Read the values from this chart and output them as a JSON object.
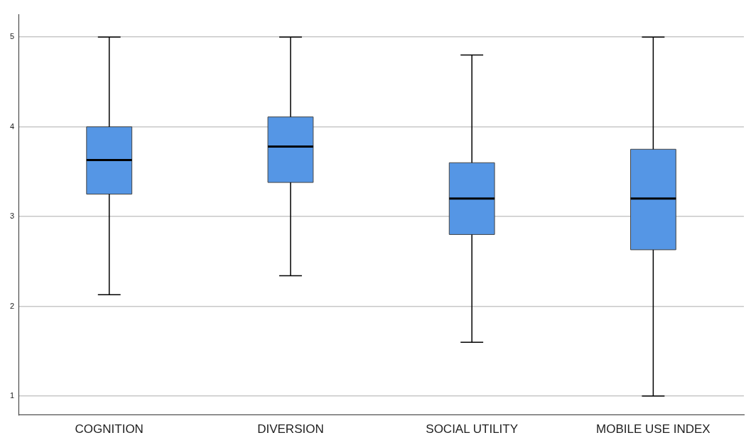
{
  "chart_data": {
    "type": "box",
    "categories": [
      "COGNITION",
      "DIVERSION",
      "SOCIAL UTILITY",
      "MOBILE USE INDEX"
    ],
    "boxes": [
      {
        "low": 2.13,
        "q1": 3.25,
        "median": 3.63,
        "q3": 4.0,
        "high": 5.0
      },
      {
        "low": 2.34,
        "q1": 3.38,
        "median": 3.78,
        "q3": 4.11,
        "high": 5.0
      },
      {
        "low": 1.6,
        "q1": 2.8,
        "median": 3.2,
        "q3": 3.6,
        "high": 4.8
      },
      {
        "low": 1.0,
        "q1": 2.63,
        "median": 3.2,
        "q3": 3.75,
        "high": 5.0
      }
    ],
    "color": "#5596e5",
    "ylim": [
      0.79,
      5.25
    ],
    "yticks": [
      1,
      2,
      3,
      4,
      5
    ],
    "grid": "y"
  }
}
